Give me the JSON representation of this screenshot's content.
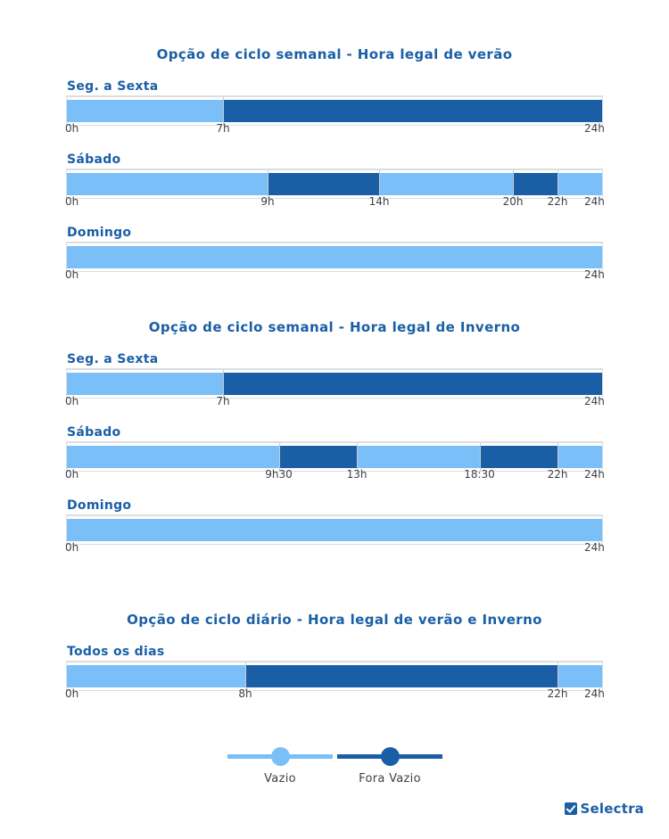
{
  "colors": {
    "vazio": "#7abff8",
    "fora_vazio": "#1a5fa6"
  },
  "chart_data": {
    "type": "timeline",
    "unit": "hours",
    "range": [
      0,
      24
    ],
    "legend": {
      "vazio": "Vazio",
      "fora_vazio": "Fora Vazio",
      "placement": "bottom-center"
    },
    "sections": [
      {
        "title": "Opção de ciclo semanal - Hora legal de verão",
        "rows": [
          {
            "label": "Seg. a Sexta",
            "segments": [
              {
                "start": 0,
                "end": 7,
                "type": "vazio"
              },
              {
                "start": 7,
                "end": 24,
                "type": "fora_vazio"
              }
            ],
            "ticks": [
              {
                "value": 0,
                "label": "0h"
              },
              {
                "value": 7,
                "label": "7h"
              },
              {
                "value": 24,
                "label": "24h"
              }
            ]
          },
          {
            "label": "Sábado",
            "segments": [
              {
                "start": 0,
                "end": 9,
                "type": "vazio"
              },
              {
                "start": 9,
                "end": 14,
                "type": "fora_vazio"
              },
              {
                "start": 14,
                "end": 20,
                "type": "vazio"
              },
              {
                "start": 20,
                "end": 22,
                "type": "fora_vazio"
              },
              {
                "start": 22,
                "end": 24,
                "type": "vazio"
              }
            ],
            "ticks": [
              {
                "value": 0,
                "label": "0h"
              },
              {
                "value": 9,
                "label": "9h"
              },
              {
                "value": 14,
                "label": "14h"
              },
              {
                "value": 20,
                "label": "20h"
              },
              {
                "value": 22,
                "label": "22h"
              },
              {
                "value": 24,
                "label": "24h"
              }
            ]
          },
          {
            "label": "Domingo",
            "segments": [
              {
                "start": 0,
                "end": 24,
                "type": "vazio"
              }
            ],
            "ticks": [
              {
                "value": 0,
                "label": "0h"
              },
              {
                "value": 24,
                "label": "24h"
              }
            ]
          }
        ]
      },
      {
        "title": "Opção de ciclo semanal - Hora legal de Inverno",
        "rows": [
          {
            "label": "Seg. a Sexta",
            "segments": [
              {
                "start": 0,
                "end": 7,
                "type": "vazio"
              },
              {
                "start": 7,
                "end": 24,
                "type": "fora_vazio"
              }
            ],
            "ticks": [
              {
                "value": 0,
                "label": "0h"
              },
              {
                "value": 7,
                "label": "7h"
              },
              {
                "value": 24,
                "label": "24h"
              }
            ]
          },
          {
            "label": "Sábado",
            "segments": [
              {
                "start": 0,
                "end": 9.5,
                "type": "vazio"
              },
              {
                "start": 9.5,
                "end": 13,
                "type": "fora_vazio"
              },
              {
                "start": 13,
                "end": 18.5,
                "type": "vazio"
              },
              {
                "start": 18.5,
                "end": 22,
                "type": "fora_vazio"
              },
              {
                "start": 22,
                "end": 24,
                "type": "vazio"
              }
            ],
            "ticks": [
              {
                "value": 0,
                "label": "0h"
              },
              {
                "value": 9.5,
                "label": "9h30"
              },
              {
                "value": 13,
                "label": "13h"
              },
              {
                "value": 18.5,
                "label": "18:30"
              },
              {
                "value": 22,
                "label": "22h"
              },
              {
                "value": 24,
                "label": "24h"
              }
            ]
          },
          {
            "label": "Domingo",
            "segments": [
              {
                "start": 0,
                "end": 24,
                "type": "vazio"
              }
            ],
            "ticks": [
              {
                "value": 0,
                "label": "0h"
              },
              {
                "value": 24,
                "label": "24h"
              }
            ]
          }
        ]
      },
      {
        "title": "Opção de ciclo diário - Hora legal de verão e Inverno",
        "rows": [
          {
            "label": "Todos os dias",
            "segments": [
              {
                "start": 0,
                "end": 8,
                "type": "vazio"
              },
              {
                "start": 8,
                "end": 22,
                "type": "fora_vazio"
              },
              {
                "start": 22,
                "end": 24,
                "type": "vazio"
              }
            ],
            "ticks": [
              {
                "value": 0,
                "label": "0h"
              },
              {
                "value": 8,
                "label": "8h"
              },
              {
                "value": 22,
                "label": "22h"
              },
              {
                "value": 24,
                "label": "24h"
              }
            ]
          }
        ]
      }
    ]
  },
  "brand": {
    "name": "Selectra"
  }
}
